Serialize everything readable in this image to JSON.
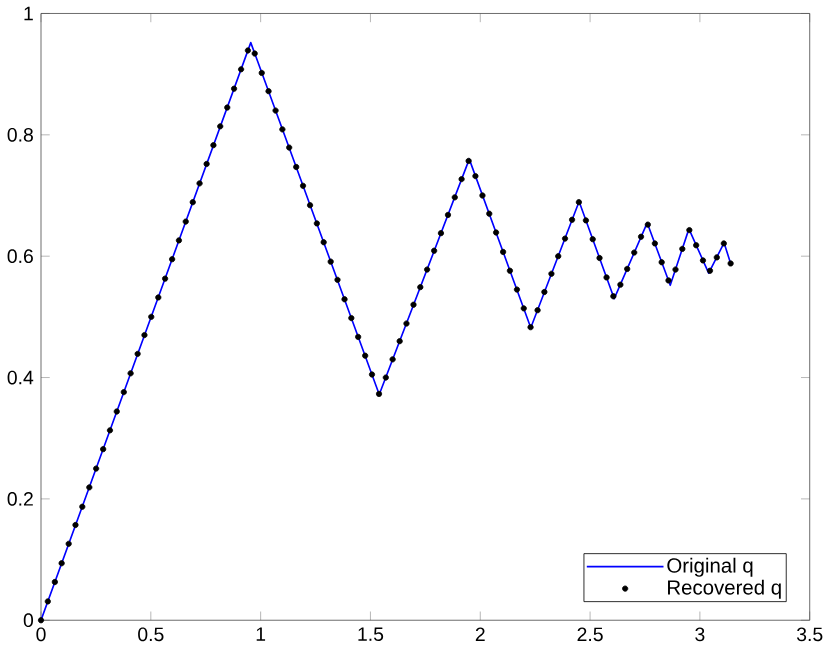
{
  "chart_data": {
    "type": "line",
    "xlim": [
      0,
      3.5
    ],
    "ylim": [
      0,
      1
    ],
    "xticks": [
      0,
      0.5,
      1,
      1.5,
      2,
      2.5,
      3,
      3.5
    ],
    "yticks": [
      0,
      0.2,
      0.4,
      0.6,
      0.8,
      1
    ],
    "grid": false,
    "legend": "bottom right",
    "series": [
      {
        "name": "Original q",
        "type": "line",
        "color": "#0000ff",
        "marker": "none",
        "line_style": "solid",
        "x": [
          0,
          0.955,
          1.54,
          1.95,
          2.23,
          2.45,
          2.61,
          2.76,
          2.865,
          2.95,
          3.04,
          3.11,
          3.14
        ],
        "values": [
          0,
          0.952,
          0.372,
          0.76,
          0.482,
          0.69,
          0.53,
          0.655,
          0.552,
          0.645,
          0.572,
          0.622,
          0.588
        ]
      },
      {
        "name": "Recovered q",
        "type": "scatter",
        "color": "#000000",
        "marker": "circle",
        "x": [
          0,
          0.031,
          0.063,
          0.094,
          0.126,
          0.157,
          0.188,
          0.22,
          0.251,
          0.283,
          0.314,
          0.345,
          0.377,
          0.408,
          0.44,
          0.471,
          0.502,
          0.534,
          0.565,
          0.597,
          0.628,
          0.659,
          0.691,
          0.722,
          0.754,
          0.785,
          0.816,
          0.848,
          0.879,
          0.911,
          0.942,
          0.973,
          1.005,
          1.036,
          1.068,
          1.099,
          1.13,
          1.162,
          1.193,
          1.225,
          1.256,
          1.287,
          1.319,
          1.35,
          1.382,
          1.413,
          1.444,
          1.476,
          1.507,
          1.539,
          1.57,
          1.601,
          1.633,
          1.664,
          1.696,
          1.727,
          1.758,
          1.79,
          1.821,
          1.853,
          1.884,
          1.915,
          1.947,
          1.978,
          2.01,
          2.041,
          2.072,
          2.104,
          2.135,
          2.167,
          2.198,
          2.229,
          2.261,
          2.292,
          2.324,
          2.355,
          2.386,
          2.418,
          2.449,
          2.481,
          2.512,
          2.543,
          2.575,
          2.606,
          2.638,
          2.669,
          2.701,
          2.732,
          2.763,
          2.795,
          2.826,
          2.857,
          2.889,
          2.92,
          2.952,
          2.983,
          3.014,
          3.046,
          3.077,
          3.109,
          3.14
        ],
        "values": [
          0,
          0.031,
          0.063,
          0.094,
          0.126,
          0.157,
          0.187,
          0.219,
          0.25,
          0.282,
          0.313,
          0.344,
          0.376,
          0.407,
          0.439,
          0.47,
          0.5,
          0.532,
          0.563,
          0.595,
          0.626,
          0.657,
          0.689,
          0.72,
          0.752,
          0.783,
          0.814,
          0.845,
          0.876,
          0.908,
          0.939,
          0.934,
          0.902,
          0.872,
          0.84,
          0.809,
          0.779,
          0.747,
          0.716,
          0.684,
          0.654,
          0.623,
          0.591,
          0.561,
          0.529,
          0.498,
          0.467,
          0.436,
          0.405,
          0.373,
          0.4,
          0.43,
          0.46,
          0.489,
          0.52,
          0.549,
          0.578,
          0.609,
          0.638,
          0.668,
          0.697,
          0.727,
          0.757,
          0.732,
          0.7,
          0.67,
          0.639,
          0.607,
          0.576,
          0.545,
          0.514,
          0.483,
          0.511,
          0.541,
          0.571,
          0.6,
          0.629,
          0.66,
          0.689,
          0.659,
          0.628,
          0.597,
          0.565,
          0.534,
          0.553,
          0.579,
          0.606,
          0.632,
          0.652,
          0.621,
          0.59,
          0.56,
          0.578,
          0.612,
          0.643,
          0.618,
          0.593,
          0.576,
          0.598,
          0.621,
          0.588
        ]
      }
    ]
  }
}
